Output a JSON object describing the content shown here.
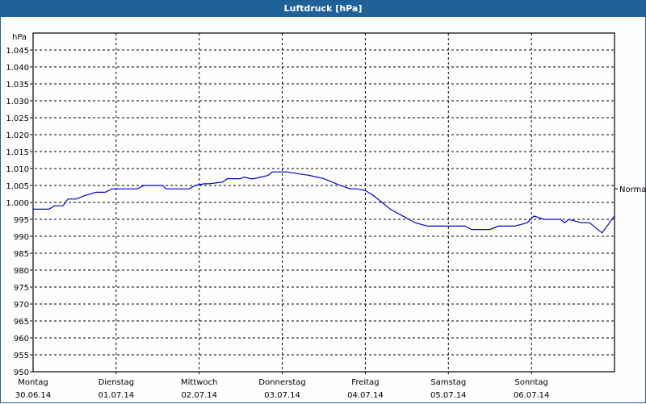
{
  "window": {
    "title": "Luftdruck [hPa]"
  },
  "chart_data": {
    "type": "line",
    "title": "Luftdruck [hPa]",
    "xlabel": "",
    "ylabel": "hPa",
    "ylim": [
      950,
      1050
    ],
    "yticks": [
      950,
      955,
      960,
      965,
      970,
      975,
      980,
      985,
      990,
      995,
      1000,
      1005,
      1010,
      1015,
      1020,
      1025,
      1030,
      1035,
      1040,
      1045
    ],
    "ytick_labels": [
      "950",
      "955",
      "960",
      "965",
      "970",
      "975",
      "980",
      "985",
      "990",
      "995",
      "1.000",
      "1.005",
      "1.010",
      "1.015",
      "1.020",
      "1.025",
      "1.030",
      "1.035",
      "1.040",
      "1.045"
    ],
    "xtick_days": [
      "Montag",
      "Dienstag",
      "Mittwoch",
      "Donnerstag",
      "Freitag",
      "Samstag",
      "Sonntag"
    ],
    "xtick_dates": [
      "30.06.14",
      "01.07.14",
      "02.07.14",
      "03.07.14",
      "04.07.14",
      "05.07.14",
      "06.07.14"
    ],
    "grid": true,
    "reference_line": {
      "label": "Normal",
      "value": 1004
    },
    "line_color": "#0000cc",
    "series": [
      {
        "name": "Luftdruck",
        "x_days": [
          0.0,
          0.19,
          0.26,
          0.36,
          0.42,
          0.52,
          0.62,
          0.76,
          0.87,
          0.95,
          1.0,
          1.25,
          1.34,
          1.56,
          1.6,
          1.88,
          1.95,
          2.06,
          2.12,
          2.28,
          2.34,
          2.5,
          2.54,
          2.62,
          2.66,
          2.83,
          2.88,
          3.0,
          3.05,
          3.32,
          3.5,
          3.7,
          3.82,
          3.9,
          4.0,
          4.1,
          4.2,
          4.3,
          4.45,
          4.6,
          4.75,
          4.9,
          5.0,
          5.2,
          5.28,
          5.5,
          5.6,
          5.8,
          5.95,
          6.03,
          6.15,
          6.35,
          6.4,
          6.45,
          6.6,
          6.7,
          6.85,
          7.0
        ],
        "values": [
          998,
          998,
          999,
          999,
          1001,
          1001,
          1002,
          1003,
          1003,
          1004,
          1004,
          1004,
          1005,
          1005,
          1004,
          1004,
          1005,
          1005.5,
          1005.5,
          1006,
          1007,
          1007,
          1007.5,
          1007,
          1007,
          1008,
          1009,
          1009,
          1009,
          1008,
          1007,
          1005,
          1004,
          1004,
          1003.5,
          1002,
          1000,
          998,
          996,
          994,
          993,
          993,
          993,
          993,
          992,
          992,
          993,
          993,
          994,
          996,
          995,
          995,
          994,
          995,
          994,
          994,
          991,
          996
        ]
      }
    ]
  }
}
